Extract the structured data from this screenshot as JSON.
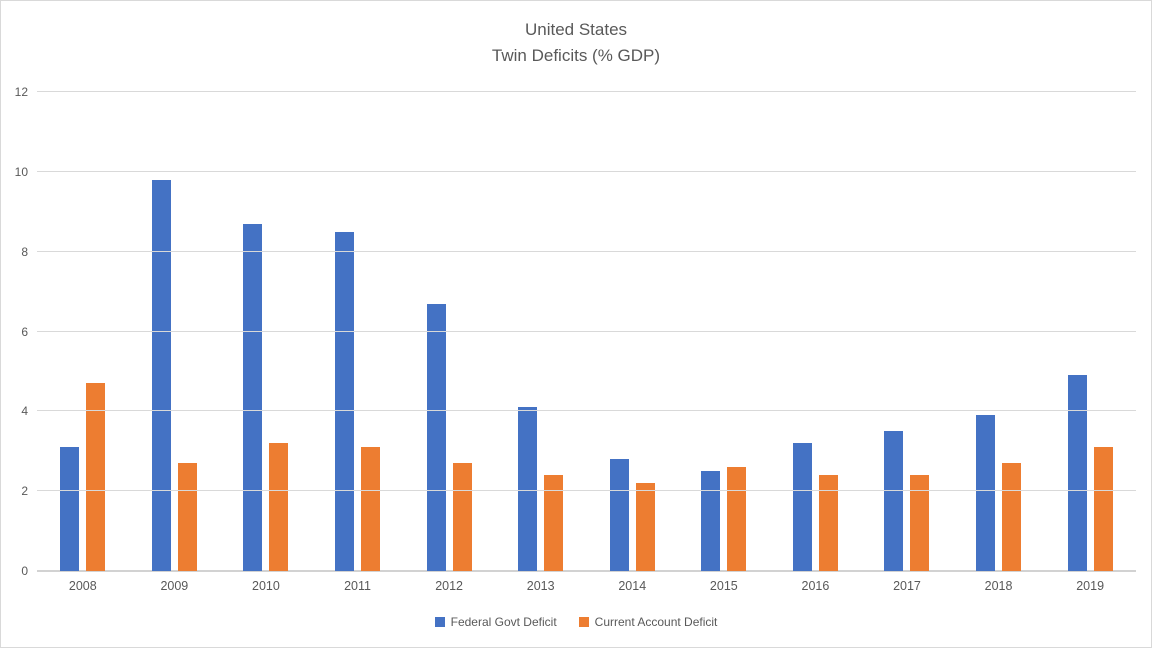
{
  "chart_data": {
    "type": "bar",
    "title": "United States",
    "subtitle": "Twin Deficits (% GDP)",
    "categories": [
      "2008",
      "2009",
      "2010",
      "2011",
      "2012",
      "2013",
      "2014",
      "2015",
      "2016",
      "2017",
      "2018",
      "2019"
    ],
    "series": [
      {
        "name": "Federal Govt Deficit",
        "color": "#4472C4",
        "values": [
          3.1,
          9.8,
          8.7,
          8.5,
          6.7,
          4.1,
          2.8,
          2.5,
          3.2,
          3.5,
          3.9,
          4.9
        ]
      },
      {
        "name": "Current Account Deficit",
        "color": "#ED7D31",
        "values": [
          4.7,
          2.7,
          3.2,
          3.1,
          2.7,
          2.4,
          2.2,
          2.6,
          2.4,
          2.4,
          2.7,
          3.1
        ]
      }
    ],
    "ylim": [
      0,
      12
    ],
    "ytick_step": 2,
    "ytick_labels": [
      "0",
      "2",
      "4",
      "6",
      "8",
      "10",
      "12"
    ],
    "grid": true,
    "legend_position": "bottom"
  },
  "colors": {
    "gridline": "#D9D9D9",
    "axis_line": "#D2D2D2",
    "text": "#595959",
    "frame_border": "#D9D9D9",
    "background": "#FFFFFF"
  }
}
